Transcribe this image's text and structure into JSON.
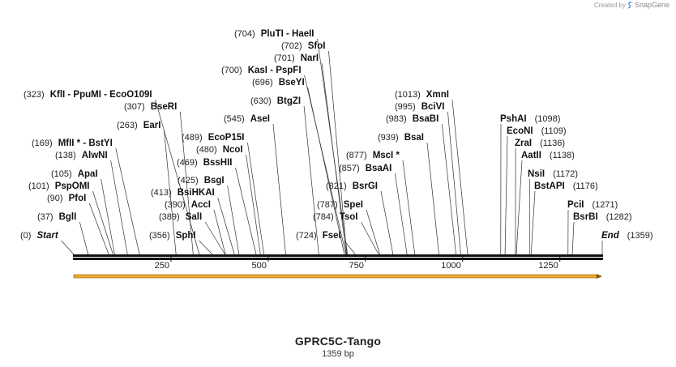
{
  "credit": {
    "prefix": "Created by",
    "brand": "SnapGene"
  },
  "sequence": {
    "name": "GPRC5C-Tango",
    "length_label": "1359 bp",
    "length": 1359
  },
  "colors": {
    "feature_arrow": "#f0a830",
    "feature_arrow_edge": "#8a5a10",
    "backbone": "#111111",
    "leader": "#333333"
  },
  "ruler_ticks": [
    {
      "pos": 250,
      "label": "250"
    },
    {
      "pos": 500,
      "label": "500"
    },
    {
      "pos": 750,
      "label": "750"
    },
    {
      "pos": 1000,
      "label": "1000"
    },
    {
      "pos": 1250,
      "label": "1250"
    }
  ],
  "sites": [
    {
      "num": "(0)",
      "name": "Start",
      "pos": 0,
      "italic": true
    },
    {
      "num": "(37)",
      "name": "BglI",
      "pos": 37
    },
    {
      "num": "(90)",
      "name": "PfoI",
      "pos": 90
    },
    {
      "num": "(101)",
      "name": "PspOMI",
      "pos": 101
    },
    {
      "num": "(105)",
      "name": "ApaI",
      "pos": 105
    },
    {
      "num": "(138)",
      "name": "AlwNI",
      "pos": 138
    },
    {
      "num": "(169)",
      "name": "MfII * - BstYI",
      "pos": 169
    },
    {
      "num": "(263)",
      "name": "EarI",
      "pos": 263
    },
    {
      "num": "(307)",
      "name": "BseRI",
      "pos": 307
    },
    {
      "num": "(323)",
      "name": "KflI  - PpuMI  - EcoO109I",
      "pos": 323
    },
    {
      "num": "(356)",
      "name": "SphI",
      "pos": 356
    },
    {
      "num": "(389)",
      "name": "SalI",
      "pos": 389
    },
    {
      "num": "(390)",
      "name": "AccI",
      "pos": 390
    },
    {
      "num": "(413)",
      "name": "BsiHKAI",
      "pos": 413
    },
    {
      "num": "(425)",
      "name": "BsgI",
      "pos": 425
    },
    {
      "num": "(469)",
      "name": "BssHII",
      "pos": 469
    },
    {
      "num": "(480)",
      "name": "NcoI",
      "pos": 480
    },
    {
      "num": "(489)",
      "name": "EcoP15I",
      "pos": 489
    },
    {
      "num": "(545)",
      "name": "AseI",
      "pos": 545
    },
    {
      "num": "(630)",
      "name": "BtgZI",
      "pos": 630
    },
    {
      "num": "(696)",
      "name": "BseYI",
      "pos": 696
    },
    {
      "num": "(700)",
      "name": "KasI  - PspFI",
      "pos": 700
    },
    {
      "num": "(701)",
      "name": "NarI",
      "pos": 701
    },
    {
      "num": "(702)",
      "name": "SfoI",
      "pos": 702
    },
    {
      "num": "(704)",
      "name": "PluTI  - HaeII",
      "pos": 704
    },
    {
      "num": "(724)",
      "name": "FseI",
      "pos": 724
    },
    {
      "num": "(784)",
      "name": "TsoI",
      "pos": 784
    },
    {
      "num": "(787)",
      "name": "SpeI",
      "pos": 787
    },
    {
      "num": "(821)",
      "name": "BsrGI",
      "pos": 821
    },
    {
      "num": "(857)",
      "name": "BsaAI",
      "pos": 857
    },
    {
      "num": "(877)",
      "name": "MscI *",
      "pos": 877
    },
    {
      "num": "(939)",
      "name": "BsaI",
      "pos": 939
    },
    {
      "num": "(983)",
      "name": "BsaBI",
      "pos": 983
    },
    {
      "num": "(995)",
      "name": "BciVI",
      "pos": 995
    },
    {
      "num": "(1013)",
      "name": "XmnI",
      "pos": 1013
    },
    {
      "num": "(1098)",
      "name": "PshAI",
      "pos": 1098,
      "num_right": true
    },
    {
      "num": "(1109)",
      "name": "EcoNI",
      "pos": 1109,
      "num_right": true
    },
    {
      "num": "(1136)",
      "name": "ZraI",
      "pos": 1136,
      "num_right": true
    },
    {
      "num": "(1138)",
      "name": "AatII",
      "pos": 1138,
      "num_right": true
    },
    {
      "num": "(1172)",
      "name": "NsiI",
      "pos": 1172,
      "num_right": true
    },
    {
      "num": "(1176)",
      "name": "BstAPI",
      "pos": 1176,
      "num_right": true
    },
    {
      "num": "(1271)",
      "name": "PciI",
      "pos": 1271,
      "num_right": true
    },
    {
      "num": "(1282)",
      "name": "BsrBI",
      "pos": 1282,
      "num_right": true
    },
    {
      "num": "(1359)",
      "name": "End",
      "pos": 1359,
      "italic": true,
      "num_right": true
    }
  ]
}
